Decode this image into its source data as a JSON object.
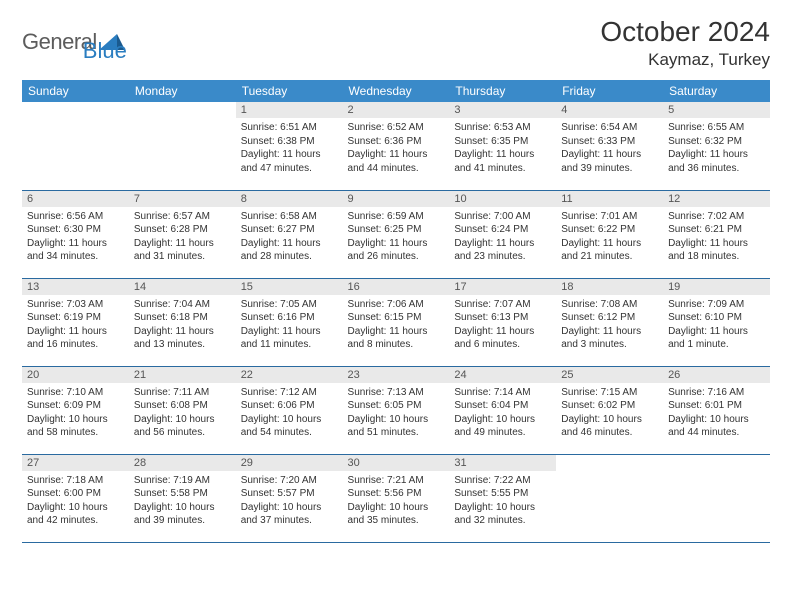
{
  "brand": {
    "name1": "General",
    "name2": "Blue",
    "color1": "#5c5c5c",
    "color2": "#2a7dc0"
  },
  "title": "October 2024",
  "location": "Kaymaz, Turkey",
  "header_bg": "#3a8ac9",
  "daynum_bg": "#e9e9e9",
  "border_color": "#2a6aa0",
  "weekdays": [
    "Sunday",
    "Monday",
    "Tuesday",
    "Wednesday",
    "Thursday",
    "Friday",
    "Saturday"
  ],
  "days": [
    {
      "n": "",
      "sr": "",
      "ss": "",
      "dl": ""
    },
    {
      "n": "",
      "sr": "",
      "ss": "",
      "dl": ""
    },
    {
      "n": "1",
      "sr": "6:51 AM",
      "ss": "6:38 PM",
      "dl": "11 hours and 47 minutes."
    },
    {
      "n": "2",
      "sr": "6:52 AM",
      "ss": "6:36 PM",
      "dl": "11 hours and 44 minutes."
    },
    {
      "n": "3",
      "sr": "6:53 AM",
      "ss": "6:35 PM",
      "dl": "11 hours and 41 minutes."
    },
    {
      "n": "4",
      "sr": "6:54 AM",
      "ss": "6:33 PM",
      "dl": "11 hours and 39 minutes."
    },
    {
      "n": "5",
      "sr": "6:55 AM",
      "ss": "6:32 PM",
      "dl": "11 hours and 36 minutes."
    },
    {
      "n": "6",
      "sr": "6:56 AM",
      "ss": "6:30 PM",
      "dl": "11 hours and 34 minutes."
    },
    {
      "n": "7",
      "sr": "6:57 AM",
      "ss": "6:28 PM",
      "dl": "11 hours and 31 minutes."
    },
    {
      "n": "8",
      "sr": "6:58 AM",
      "ss": "6:27 PM",
      "dl": "11 hours and 28 minutes."
    },
    {
      "n": "9",
      "sr": "6:59 AM",
      "ss": "6:25 PM",
      "dl": "11 hours and 26 minutes."
    },
    {
      "n": "10",
      "sr": "7:00 AM",
      "ss": "6:24 PM",
      "dl": "11 hours and 23 minutes."
    },
    {
      "n": "11",
      "sr": "7:01 AM",
      "ss": "6:22 PM",
      "dl": "11 hours and 21 minutes."
    },
    {
      "n": "12",
      "sr": "7:02 AM",
      "ss": "6:21 PM",
      "dl": "11 hours and 18 minutes."
    },
    {
      "n": "13",
      "sr": "7:03 AM",
      "ss": "6:19 PM",
      "dl": "11 hours and 16 minutes."
    },
    {
      "n": "14",
      "sr": "7:04 AM",
      "ss": "6:18 PM",
      "dl": "11 hours and 13 minutes."
    },
    {
      "n": "15",
      "sr": "7:05 AM",
      "ss": "6:16 PM",
      "dl": "11 hours and 11 minutes."
    },
    {
      "n": "16",
      "sr": "7:06 AM",
      "ss": "6:15 PM",
      "dl": "11 hours and 8 minutes."
    },
    {
      "n": "17",
      "sr": "7:07 AM",
      "ss": "6:13 PM",
      "dl": "11 hours and 6 minutes."
    },
    {
      "n": "18",
      "sr": "7:08 AM",
      "ss": "6:12 PM",
      "dl": "11 hours and 3 minutes."
    },
    {
      "n": "19",
      "sr": "7:09 AM",
      "ss": "6:10 PM",
      "dl": "11 hours and 1 minute."
    },
    {
      "n": "20",
      "sr": "7:10 AM",
      "ss": "6:09 PM",
      "dl": "10 hours and 58 minutes."
    },
    {
      "n": "21",
      "sr": "7:11 AM",
      "ss": "6:08 PM",
      "dl": "10 hours and 56 minutes."
    },
    {
      "n": "22",
      "sr": "7:12 AM",
      "ss": "6:06 PM",
      "dl": "10 hours and 54 minutes."
    },
    {
      "n": "23",
      "sr": "7:13 AM",
      "ss": "6:05 PM",
      "dl": "10 hours and 51 minutes."
    },
    {
      "n": "24",
      "sr": "7:14 AM",
      "ss": "6:04 PM",
      "dl": "10 hours and 49 minutes."
    },
    {
      "n": "25",
      "sr": "7:15 AM",
      "ss": "6:02 PM",
      "dl": "10 hours and 46 minutes."
    },
    {
      "n": "26",
      "sr": "7:16 AM",
      "ss": "6:01 PM",
      "dl": "10 hours and 44 minutes."
    },
    {
      "n": "27",
      "sr": "7:18 AM",
      "ss": "6:00 PM",
      "dl": "10 hours and 42 minutes."
    },
    {
      "n": "28",
      "sr": "7:19 AM",
      "ss": "5:58 PM",
      "dl": "10 hours and 39 minutes."
    },
    {
      "n": "29",
      "sr": "7:20 AM",
      "ss": "5:57 PM",
      "dl": "10 hours and 37 minutes."
    },
    {
      "n": "30",
      "sr": "7:21 AM",
      "ss": "5:56 PM",
      "dl": "10 hours and 35 minutes."
    },
    {
      "n": "31",
      "sr": "7:22 AM",
      "ss": "5:55 PM",
      "dl": "10 hours and 32 minutes."
    },
    {
      "n": "",
      "sr": "",
      "ss": "",
      "dl": ""
    },
    {
      "n": "",
      "sr": "",
      "ss": "",
      "dl": ""
    }
  ],
  "labels": {
    "sunrise": "Sunrise:",
    "sunset": "Sunset:",
    "daylight": "Daylight:"
  }
}
